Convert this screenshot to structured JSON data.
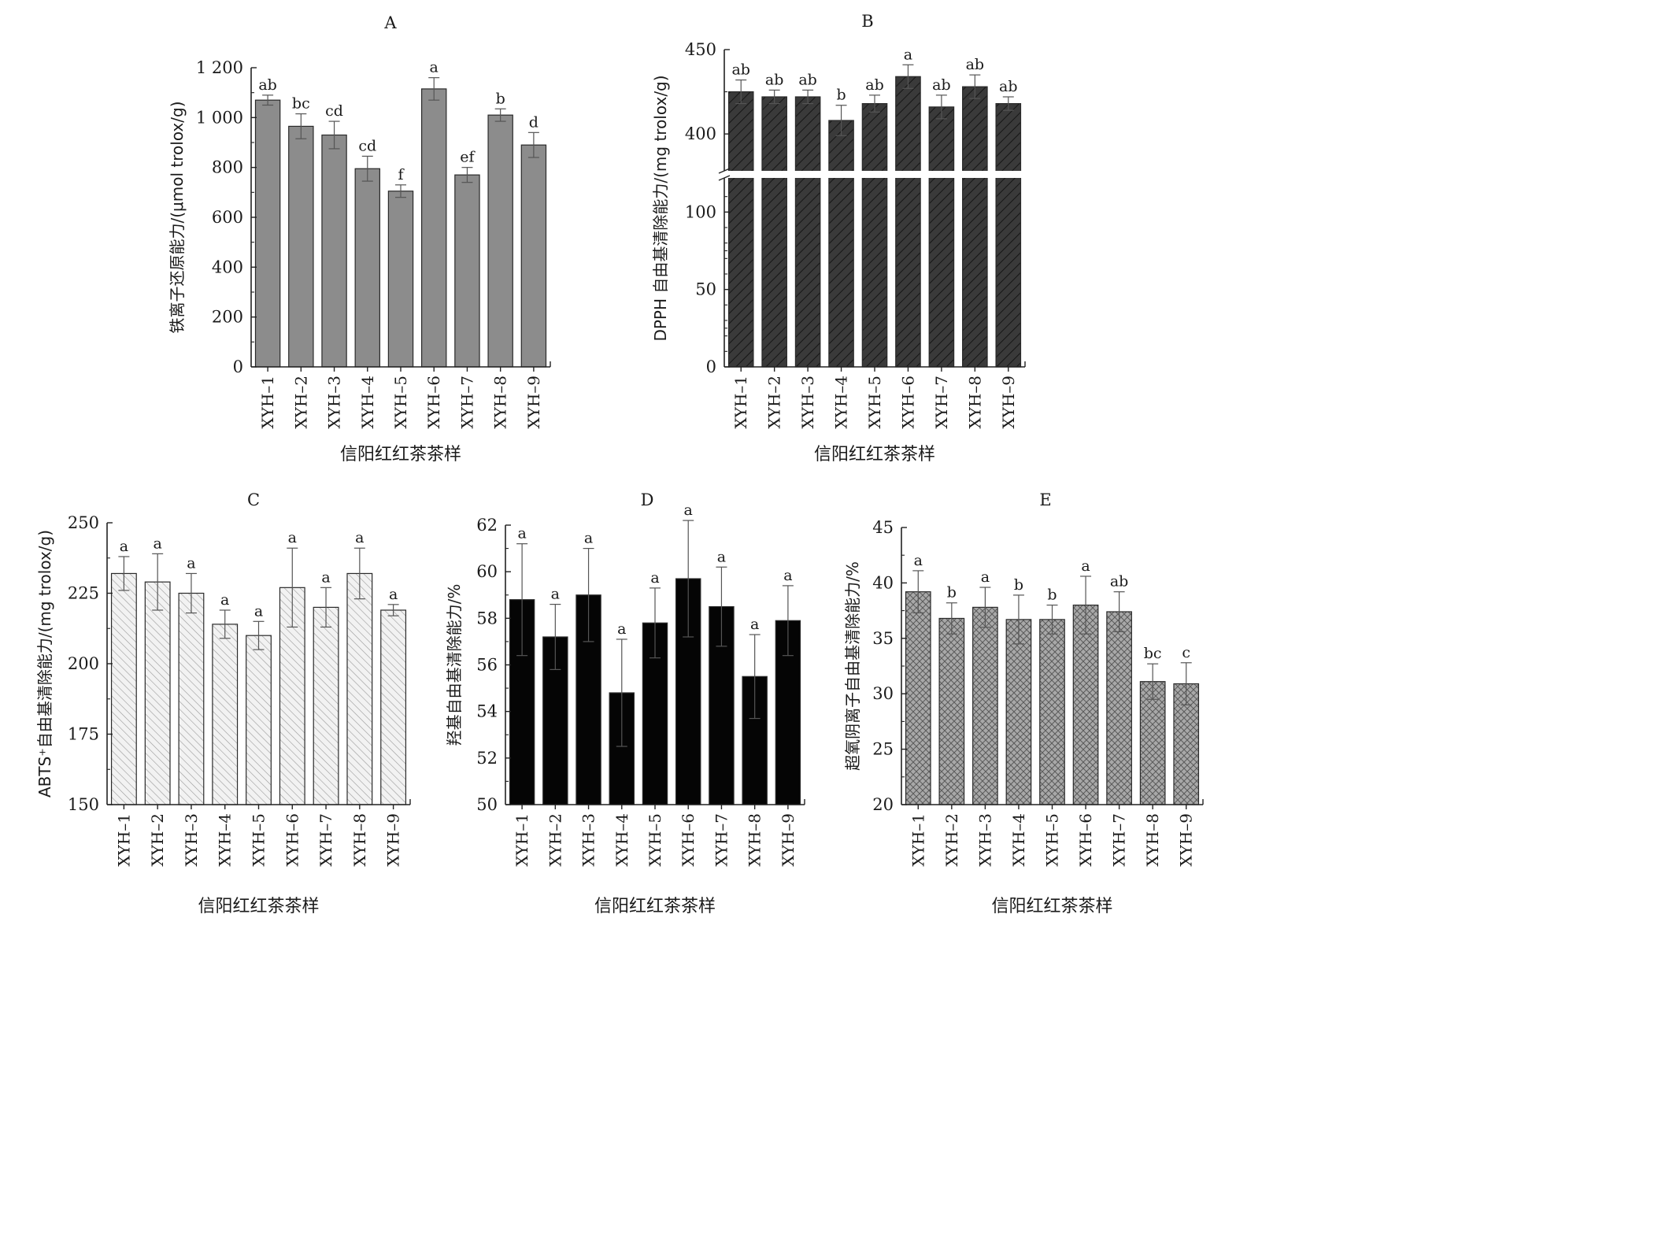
{
  "x_tick_labels": [
    "XYH–1",
    "XYH–2",
    "XYH–3",
    "XYH–4",
    "XYH–5",
    "XYH–6",
    "XYH–7",
    "XYH–8",
    "XYH–9"
  ],
  "chart_data": [
    {
      "type": "bar",
      "title": "A",
      "xlabel": "信阳红红茶茶样",
      "ylabel": "铁离子还原能力/(μmol trolox/g)",
      "categories": [
        "XYH–1",
        "XYH–2",
        "XYH–3",
        "XYH–4",
        "XYH–5",
        "XYH–6",
        "XYH–7",
        "XYH–8",
        "XYH–9"
      ],
      "values": [
        1070,
        965,
        930,
        795,
        705,
        1115,
        770,
        1010,
        890
      ],
      "error": [
        20,
        50,
        55,
        50,
        25,
        45,
        30,
        25,
        50
      ],
      "labels": [
        "ab",
        "bc",
        "cd",
        "cd",
        "f",
        "a",
        "ef",
        "b",
        "d"
      ],
      "ylim": [
        0,
        1200
      ],
      "yticks": [
        0,
        200,
        400,
        600,
        800,
        1000,
        1200
      ],
      "ytick_labels": [
        "0",
        "200",
        "400",
        "600",
        "800",
        "1 000",
        "1 200"
      ],
      "fill": "#8c8c8c",
      "pattern": "solid",
      "grid": false
    },
    {
      "type": "bar",
      "title": "B",
      "xlabel": "信阳红红茶茶样",
      "ylabel": "DPPH 自由基清除能力/(mg trolox/g)",
      "categories": [
        "XYH–1",
        "XYH–2",
        "XYH–3",
        "XYH–4",
        "XYH–5",
        "XYH–6",
        "XYH–7",
        "XYH–8",
        "XYH–9"
      ],
      "values": [
        425,
        422,
        422,
        408,
        418,
        434,
        416,
        428,
        418
      ],
      "error": [
        7,
        4,
        4,
        9,
        5,
        7,
        7,
        7,
        4
      ],
      "labels": [
        "ab",
        "ab",
        "ab",
        "b",
        "ab",
        "a",
        "ab",
        "ab",
        "ab"
      ],
      "ylim": [
        0,
        450
      ],
      "axis_break": [
        120,
        380
      ],
      "yticks": [
        0,
        50,
        100,
        400,
        450
      ],
      "ytick_labels": [
        "0",
        "50",
        "100",
        "400",
        "450"
      ],
      "fill": "#3a3a3a",
      "pattern": "hatch",
      "grid": false
    },
    {
      "type": "bar",
      "title": "C",
      "xlabel": "信阳红红茶茶样",
      "ylabel": "ABTS⁺自由基清除能力/(mg trolox/g)",
      "categories": [
        "XYH–1",
        "XYH–2",
        "XYH–3",
        "XYH–4",
        "XYH–5",
        "XYH–6",
        "XYH–7",
        "XYH–8",
        "XYH–9"
      ],
      "values": [
        232,
        229,
        225,
        214,
        210,
        227,
        220,
        232,
        219
      ],
      "error": [
        6,
        10,
        7,
        5,
        5,
        14,
        7,
        9,
        2
      ],
      "labels": [
        "a",
        "a",
        "a",
        "a",
        "a",
        "a",
        "a",
        "a",
        "a"
      ],
      "ylim": [
        150,
        250
      ],
      "yticks": [
        150,
        175,
        200,
        225,
        250
      ],
      "ytick_labels": [
        "150",
        "175",
        "200",
        "225",
        "250"
      ],
      "fill": "#f2f2f2",
      "pattern": "hatch-light",
      "grid": false
    },
    {
      "type": "bar",
      "title": "D",
      "xlabel": "信阳红红茶茶样",
      "ylabel": "羟基自由基清除能力/%",
      "categories": [
        "XYH–1",
        "XYH–2",
        "XYH–3",
        "XYH–4",
        "XYH–5",
        "XYH–6",
        "XYH–7",
        "XYH–8",
        "XYH–9"
      ],
      "values": [
        58.8,
        57.2,
        59.0,
        54.8,
        57.8,
        59.7,
        58.5,
        55.5,
        57.9
      ],
      "error": [
        2.4,
        1.4,
        2.0,
        2.3,
        1.5,
        2.5,
        1.7,
        1.8,
        1.5
      ],
      "labels": [
        "a",
        "a",
        "a",
        "a",
        "a",
        "a",
        "a",
        "a",
        "a"
      ],
      "ylim": [
        50,
        62
      ],
      "yticks": [
        50,
        52,
        54,
        56,
        58,
        60,
        62
      ],
      "ytick_labels": [
        "50",
        "52",
        "54",
        "56",
        "58",
        "60",
        "62"
      ],
      "fill": "#050505",
      "pattern": "solid",
      "grid": false
    },
    {
      "type": "bar",
      "title": "E",
      "xlabel": "信阳红红茶茶样",
      "ylabel": "超氧阴离子自由基清除能力/%",
      "categories": [
        "XYH–1",
        "XYH–2",
        "XYH–3",
        "XYH–4",
        "XYH–5",
        "XYH–6",
        "XYH–7",
        "XYH–8",
        "XYH–9"
      ],
      "values": [
        39.2,
        36.8,
        37.8,
        36.7,
        36.7,
        38.0,
        37.4,
        31.1,
        30.9
      ],
      "error": [
        1.9,
        1.4,
        1.8,
        2.2,
        1.3,
        2.6,
        1.8,
        1.6,
        1.9
      ],
      "labels": [
        "a",
        "b",
        "a",
        "b",
        "b",
        "a",
        "ab",
        "bc",
        "c"
      ],
      "ylim": [
        20,
        45
      ],
      "yticks": [
        20,
        25,
        30,
        35,
        40,
        45
      ],
      "ytick_labels": [
        "20",
        "25",
        "30",
        "35",
        "40",
        "45"
      ],
      "fill": "#a8a8a8",
      "pattern": "crosshatch",
      "grid": false
    }
  ]
}
